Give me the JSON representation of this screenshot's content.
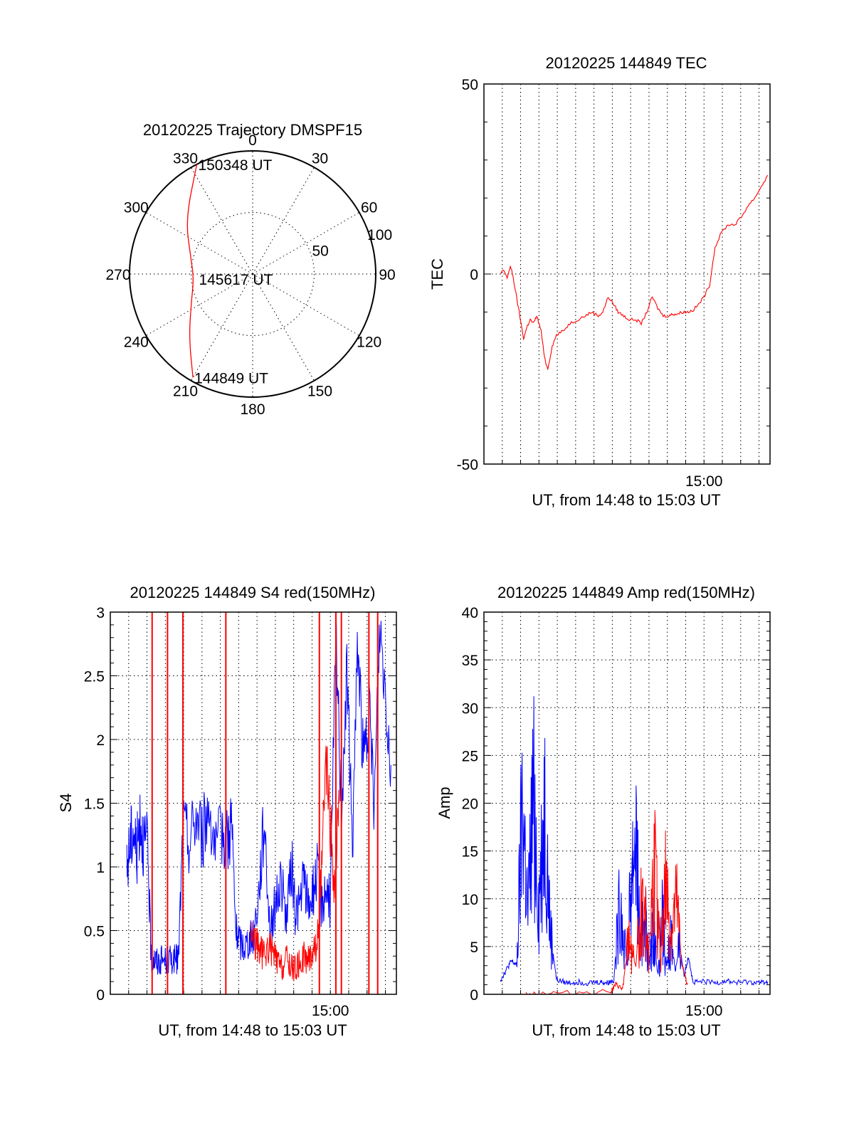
{
  "colors": {
    "red": "#ff0000",
    "blue": "#0000ff",
    "axis": "#000000"
  },
  "chart_data": [
    {
      "id": "trajectory",
      "type": "polar",
      "title": "20120225 Trajectory DMSPF15",
      "angle_labels": [
        "0",
        "30",
        "60",
        "90",
        "120",
        "150",
        "180",
        "210",
        "240",
        "270",
        "300",
        "330"
      ],
      "radial_labels": [
        "50",
        "100"
      ],
      "radial_max": 100,
      "track_labels": [
        {
          "text": "150348 UT",
          "azimuth": 333,
          "radius": 100
        },
        {
          "text": "145617 UT",
          "azimuth": 265,
          "radius": 45
        },
        {
          "text": "144849 UT",
          "azimuth": 210,
          "radius": 97
        }
      ],
      "track": [
        {
          "azimuth": 333,
          "radius": 100
        },
        {
          "azimuth": 309,
          "radius": 70
        },
        {
          "azimuth": 285,
          "radius": 52
        },
        {
          "azimuth": 265,
          "radius": 48
        },
        {
          "azimuth": 245,
          "radius": 55
        },
        {
          "azimuth": 225,
          "radius": 73
        },
        {
          "azimuth": 210,
          "radius": 97
        }
      ]
    },
    {
      "id": "tec",
      "type": "line",
      "title": "20120225 144849 TEC",
      "xlabel": "UT, from 14:48 to 15:03 UT",
      "ylabel": "TEC",
      "xlim": [
        14.8,
        15.06
      ],
      "ylim": [
        -50,
        50
      ],
      "yticks": [
        "-50",
        "0",
        "50"
      ],
      "xtick_label": "15:00",
      "xtick_value": 15.0,
      "series": [
        {
          "color": "red",
          "x": [
            14.815,
            14.818,
            14.821,
            14.824,
            14.826,
            14.829,
            14.832,
            14.836,
            14.839,
            14.842,
            14.845,
            14.848,
            14.852,
            14.855,
            14.858,
            14.862,
            14.866,
            14.872,
            14.878,
            14.885,
            14.892,
            14.898,
            14.904,
            14.908,
            14.913,
            14.918,
            14.922,
            14.927,
            14.932,
            14.938,
            14.943,
            14.948,
            14.953,
            14.958,
            14.963,
            14.968,
            14.972,
            14.976,
            14.98,
            14.985,
            14.99,
            14.995,
            15.0,
            15.005,
            15.01,
            15.016,
            15.022,
            15.028,
            15.034,
            15.04,
            15.046,
            15.052,
            15.058
          ],
          "y": [
            0,
            1,
            -1,
            2,
            0,
            -5,
            -10,
            -17,
            -14,
            -12,
            -13,
            -11,
            -15,
            -22,
            -25,
            -19,
            -16,
            -15,
            -13,
            -12,
            -11,
            -10,
            -11,
            -10,
            -6,
            -8,
            -10,
            -11,
            -12,
            -12,
            -13,
            -10,
            -6,
            -9,
            -11,
            -11,
            -10.5,
            -10.5,
            -10,
            -10,
            -9.5,
            -8,
            -6,
            -3,
            7,
            11,
            13,
            13,
            15,
            18,
            20,
            23,
            26
          ]
        }
      ]
    },
    {
      "id": "s4",
      "type": "line",
      "title": "20120225 144849 S4 red(150MHz)",
      "xlabel": "UT, from 14:48 to 15:03 UT",
      "ylabel": "S4",
      "xlim": [
        14.8,
        15.06
      ],
      "ylim": [
        0,
        3
      ],
      "yticks": [
        "0",
        "0.5",
        "1",
        "1.5",
        "2",
        "2.5",
        "3"
      ],
      "xtick_label": "15:00",
      "xtick_value": 15.0,
      "series": [
        {
          "color": "blue",
          "x": [
            14.815,
            14.818,
            14.821,
            14.824,
            14.827,
            14.83,
            14.834,
            14.837,
            14.84,
            14.843,
            14.847,
            14.852,
            14.856,
            14.86,
            14.862,
            14.866,
            14.872,
            14.878,
            14.884,
            14.89,
            14.896,
            14.902,
            14.907,
            14.91,
            14.914,
            14.918,
            14.922,
            14.926,
            14.93,
            14.935,
            14.94,
            14.945,
            14.95,
            14.955,
            14.96,
            14.965,
            14.968,
            14.972,
            14.976,
            14.98,
            14.984,
            14.988,
            14.992,
            14.996,
            15.0,
            15.005,
            15.01,
            15.015,
            15.02,
            15.025,
            15.03,
            15.035,
            15.04,
            15.045,
            15.05,
            15.055
          ],
          "y": [
            0.95,
            1.2,
            1.3,
            1.1,
            1.4,
            1.2,
            1.15,
            0.3,
            0.28,
            0.25,
            0.27,
            0.26,
            0.28,
            0.27,
            0.29,
            1.3,
            1.2,
            1.4,
            1.25,
            1.5,
            1.1,
            1.3,
            1.2,
            1.4,
            0.5,
            0.4,
            0.38,
            0.42,
            0.45,
            0.8,
            1.4,
            0.5,
            0.7,
            0.9,
            0.6,
            1.0,
            0.65,
            0.7,
            0.9,
            0.7,
            0.8,
            0.95,
            0.7,
            0.85,
            0.7,
            2.8,
            1.5,
            2.5,
            1.2,
            2.8,
            1.8,
            2.2,
            1.5,
            2.9,
            2.4,
            1.8
          ]
        },
        {
          "color": "red",
          "x": [
            14.928,
            14.932,
            14.936,
            14.94,
            14.944,
            14.948,
            14.952,
            14.956,
            14.96,
            14.964,
            14.968,
            14.972,
            14.976,
            14.98,
            14.984,
            14.988,
            14.992,
            14.996,
            15.0,
            15.004,
            15.008
          ],
          "y": [
            0.5,
            0.4,
            0.35,
            0.3,
            0.38,
            0.32,
            0.25,
            0.2,
            0.28,
            0.22,
            0.2,
            0.24,
            0.3,
            0.27,
            0.35,
            0.4,
            0.9,
            1.8,
            1.3,
            0.8,
            1.5
          ]
        }
      ],
      "red_spikes": [
        14.838,
        14.852,
        14.866,
        14.905,
        14.99,
        15.005,
        15.01,
        15.035,
        15.043
      ]
    },
    {
      "id": "amp",
      "type": "line",
      "title": "20120225 144849 Amp red(150MHz)",
      "xlabel": "UT, from 14:48 to 15:03 UT",
      "ylabel": "Amp",
      "xlim": [
        14.8,
        15.06
      ],
      "ylim": [
        0,
        40
      ],
      "yticks": [
        "0",
        "5",
        "10",
        "15",
        "20",
        "25",
        "30",
        "35",
        "40"
      ],
      "xtick_label": "15:00",
      "xtick_value": 15.0,
      "series": [
        {
          "color": "blue",
          "x": [
            14.815,
            14.82,
            14.825,
            14.83,
            14.835,
            14.84,
            14.845,
            14.85,
            14.855,
            14.86,
            14.866,
            14.875,
            14.885,
            14.895,
            14.905,
            14.912,
            14.918,
            14.924,
            14.93,
            14.934,
            14.938,
            14.942,
            14.946,
            14.95,
            14.954,
            14.958,
            14.962,
            14.966,
            14.97,
            14.974,
            14.978,
            14.982,
            14.986,
            14.99,
            15.0,
            15.01,
            15.02,
            15.03,
            15.04,
            15.05,
            15.058
          ],
          "y": [
            1.5,
            2.5,
            3.5,
            3,
            20,
            8,
            21,
            9,
            20,
            7,
            1.5,
            1.2,
            1.3,
            1.2,
            1.3,
            1.2,
            1.5,
            10,
            3,
            12,
            17,
            5,
            9,
            3,
            7,
            2,
            8,
            3,
            6,
            2.5,
            5,
            2,
            4,
            1.2,
            1.3,
            1.2,
            1.4,
            1.2,
            1.3,
            1.2,
            1.3
          ]
        },
        {
          "color": "red",
          "x": [
            14.838,
            14.865,
            14.915,
            14.92,
            14.926,
            14.932,
            14.938,
            14.944,
            14.95,
            14.955,
            14.96,
            14.965,
            14.97,
            14.975,
            14.98,
            14.985
          ],
          "y": [
            0.1,
            0.1,
            0.3,
            1,
            0.5,
            6,
            3,
            10,
            5,
            13,
            4,
            11,
            6,
            9,
            3,
            1
          ]
        }
      ]
    }
  ]
}
